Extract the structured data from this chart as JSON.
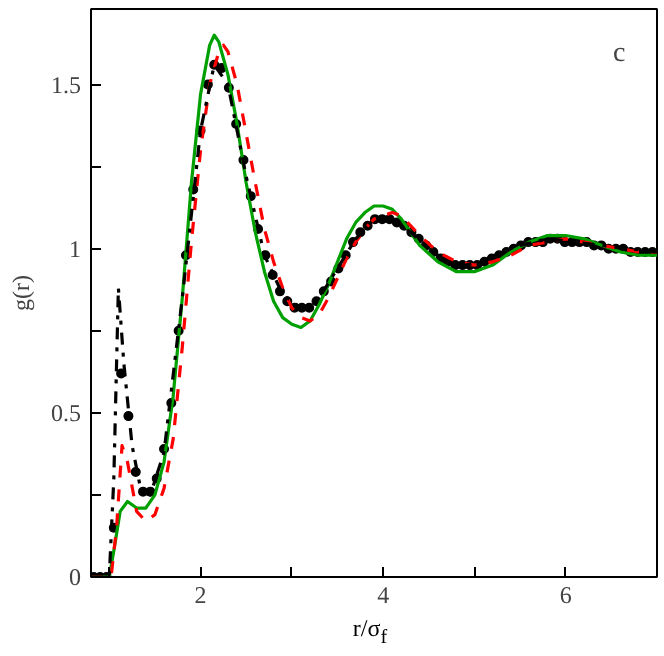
{
  "chart_data": {
    "type": "line",
    "xlabel": "r/σ$_{f}$",
    "ylabel": "g(r)",
    "annotations": [
      "c"
    ],
    "xlim": [
      0.8,
      7
    ],
    "ylim": [
      0,
      1.73
    ],
    "xticks": [
      {
        "value": 1,
        "label": null
      },
      2,
      {
        "value": 3,
        "label": null
      },
      4,
      {
        "value": 5,
        "label": null
      },
      6,
      {
        "value": 7,
        "label": null
      }
    ],
    "yticks": [
      0,
      {
        "value": 0.25,
        "label": null
      },
      0.5,
      {
        "value": 0.75,
        "label": null
      },
      1,
      {
        "value": 1.25,
        "label": null
      },
      1.5
    ],
    "grid": false,
    "series": [
      {
        "color": "#00a000",
        "line_style": "solid",
        "x": [
          0.8,
          1.0,
          1.05,
          1.12,
          1.2,
          1.3,
          1.4,
          1.5,
          1.6,
          1.7,
          1.8,
          1.9,
          2.0,
          2.1,
          2.15,
          2.2,
          2.3,
          2.4,
          2.5,
          2.6,
          2.7,
          2.8,
          2.9,
          3.0,
          3.1,
          3.2,
          3.3,
          3.4,
          3.5,
          3.6,
          3.7,
          3.8,
          3.9,
          4.0,
          4.1,
          4.2,
          4.3,
          4.4,
          4.6,
          4.8,
          5.0,
          5.2,
          5.4,
          5.6,
          5.8,
          6.0,
          6.2,
          6.4,
          6.6,
          6.8,
          7.0
        ],
        "values": [
          0,
          0,
          0.08,
          0.2,
          0.23,
          0.21,
          0.21,
          0.25,
          0.35,
          0.55,
          0.85,
          1.2,
          1.47,
          1.62,
          1.65,
          1.63,
          1.53,
          1.38,
          1.2,
          1.05,
          0.93,
          0.84,
          0.79,
          0.77,
          0.76,
          0.78,
          0.83,
          0.89,
          0.96,
          1.03,
          1.08,
          1.11,
          1.13,
          1.13,
          1.12,
          1.09,
          1.05,
          1.01,
          0.96,
          0.93,
          0.93,
          0.95,
          0.99,
          1.02,
          1.04,
          1.04,
          1.03,
          1.01,
          0.99,
          0.98,
          0.98
        ]
      },
      {
        "color": "#ff0000",
        "line_style": "dashed",
        "x": [
          0.8,
          1.02,
          1.08,
          1.14,
          1.2,
          1.3,
          1.4,
          1.5,
          1.6,
          1.7,
          1.8,
          1.9,
          2.0,
          2.1,
          2.2,
          2.25,
          2.3,
          2.4,
          2.5,
          2.6,
          2.7,
          2.8,
          2.9,
          3.0,
          3.1,
          3.2,
          3.3,
          3.4,
          3.5,
          3.6,
          3.7,
          3.8,
          3.9,
          4.0,
          4.1,
          4.2,
          4.3,
          4.4,
          4.6,
          4.8,
          5.0,
          5.2,
          5.4,
          5.6,
          5.8,
          6.0,
          6.2,
          6.4,
          6.6,
          6.8,
          7.0
        ],
        "values": [
          0,
          0,
          0.15,
          0.4,
          0.35,
          0.2,
          0.17,
          0.19,
          0.27,
          0.42,
          0.7,
          1.02,
          1.3,
          1.5,
          1.6,
          1.62,
          1.6,
          1.5,
          1.35,
          1.2,
          1.06,
          0.96,
          0.88,
          0.82,
          0.79,
          0.78,
          0.8,
          0.85,
          0.91,
          0.97,
          1.02,
          1.06,
          1.09,
          1.1,
          1.11,
          1.1,
          1.07,
          1.04,
          0.99,
          0.96,
          0.95,
          0.96,
          0.98,
          1.01,
          1.02,
          1.03,
          1.02,
          1.01,
          1.0,
          0.99,
          0.99
        ]
      },
      {
        "color": "#000000",
        "line_style": "dashdot",
        "x": [
          0.8,
          1.0,
          1.05,
          1.1,
          1.16,
          1.25,
          1.35,
          1.45,
          1.6,
          1.8,
          2.0,
          2.15,
          2.3,
          2.5,
          2.7,
          2.9,
          3.1,
          3.3,
          3.5,
          3.7,
          3.9,
          4.1,
          4.3,
          4.5,
          4.7,
          4.9,
          5.1,
          5.3,
          5.5,
          5.8,
          6.1,
          6.4,
          6.7,
          7.0
        ],
        "values": [
          0,
          0,
          0.3,
          0.88,
          0.65,
          0.4,
          0.26,
          0.25,
          0.38,
          0.85,
          1.36,
          1.56,
          1.5,
          1.22,
          0.98,
          0.86,
          0.82,
          0.85,
          0.94,
          1.03,
          1.09,
          1.09,
          1.05,
          1.0,
          0.96,
          0.95,
          0.96,
          0.99,
          1.01,
          1.03,
          1.02,
          1.01,
          1.0,
          0.99
        ]
      },
      {
        "type": "scatter",
        "color": "#000000",
        "marker": "circle",
        "x": [
          0.83,
          0.9,
          0.97,
          1.05,
          1.13,
          1.21,
          1.29,
          1.37,
          1.45,
          1.52,
          1.6,
          1.68,
          1.76,
          1.84,
          1.92,
          2.0,
          2.08,
          2.15,
          2.23,
          2.31,
          2.39,
          2.47,
          2.55,
          2.63,
          2.71,
          2.79,
          2.87,
          2.95,
          3.03,
          3.11,
          3.19,
          3.27,
          3.35,
          3.43,
          3.51,
          3.59,
          3.67,
          3.75,
          3.83,
          3.91,
          3.99,
          4.07,
          4.15,
          4.23,
          4.31,
          4.39,
          4.47,
          4.55,
          4.63,
          4.71,
          4.79,
          4.87,
          4.95,
          5.03,
          5.11,
          5.19,
          5.27,
          5.35,
          5.43,
          5.51,
          5.59,
          5.67,
          5.75,
          5.83,
          5.91,
          5.99,
          6.07,
          6.15,
          6.23,
          6.31,
          6.39,
          6.47,
          6.55,
          6.63,
          6.71,
          6.79,
          6.87,
          6.95
        ],
        "values": [
          0,
          0,
          0,
          0.15,
          0.62,
          0.49,
          0.32,
          0.26,
          0.26,
          0.3,
          0.39,
          0.53,
          0.75,
          0.98,
          1.18,
          1.36,
          1.5,
          1.56,
          1.55,
          1.49,
          1.38,
          1.27,
          1.16,
          1.06,
          0.98,
          0.92,
          0.87,
          0.84,
          0.82,
          0.82,
          0.82,
          0.84,
          0.87,
          0.9,
          0.94,
          0.98,
          1.02,
          1.05,
          1.07,
          1.09,
          1.09,
          1.09,
          1.08,
          1.07,
          1.05,
          1.03,
          1.01,
          0.99,
          0.97,
          0.96,
          0.95,
          0.95,
          0.95,
          0.95,
          0.96,
          0.97,
          0.98,
          0.99,
          1.0,
          1.01,
          1.02,
          1.02,
          1.02,
          1.03,
          1.03,
          1.02,
          1.02,
          1.02,
          1.02,
          1.01,
          1.01,
          1.0,
          1.0,
          1.0,
          0.99,
          0.99,
          0.99,
          0.99
        ]
      }
    ]
  }
}
